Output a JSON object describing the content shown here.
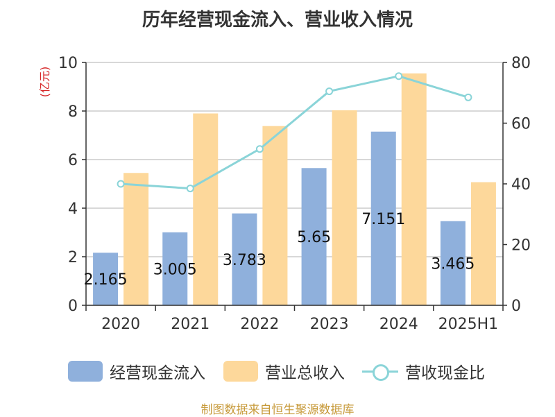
{
  "title": "历年经营现金流入、营业收入情况",
  "y_left_unit": "(亿元)",
  "source": "制图数据来自恒生聚源数据库",
  "colors": {
    "cash": "#8fb0dc",
    "revenue": "#fdd89b",
    "ratio": "#8ad4d8",
    "unit": "#d62728"
  },
  "chart_data": {
    "type": "bar",
    "categories": [
      "2020",
      "2021",
      "2022",
      "2023",
      "2024",
      "2025H1"
    ],
    "series": [
      {
        "name": "经营现金流入",
        "type": "bar",
        "axis": "left",
        "values": [
          2.165,
          3.005,
          3.783,
          5.65,
          7.151,
          3.465
        ],
        "labels": [
          "2.165",
          "3.005",
          "3.783",
          "5.65",
          "7.151",
          "3.465"
        ]
      },
      {
        "name": "营业总收入",
        "type": "bar",
        "axis": "left",
        "values": [
          5.45,
          7.9,
          7.38,
          8.03,
          9.55,
          5.07
        ]
      },
      {
        "name": "营收现金比",
        "type": "line",
        "axis": "right",
        "values": [
          40.0,
          38.5,
          51.5,
          70.5,
          75.5,
          68.5
        ]
      }
    ],
    "y_left": {
      "min": 0,
      "max": 10,
      "ticks": [
        0,
        2,
        4,
        6,
        8,
        10
      ]
    },
    "y_right": {
      "min": 0,
      "max": 80,
      "ticks": [
        0,
        20,
        40,
        60,
        80
      ]
    },
    "grid": true,
    "legend_position": "bottom"
  }
}
